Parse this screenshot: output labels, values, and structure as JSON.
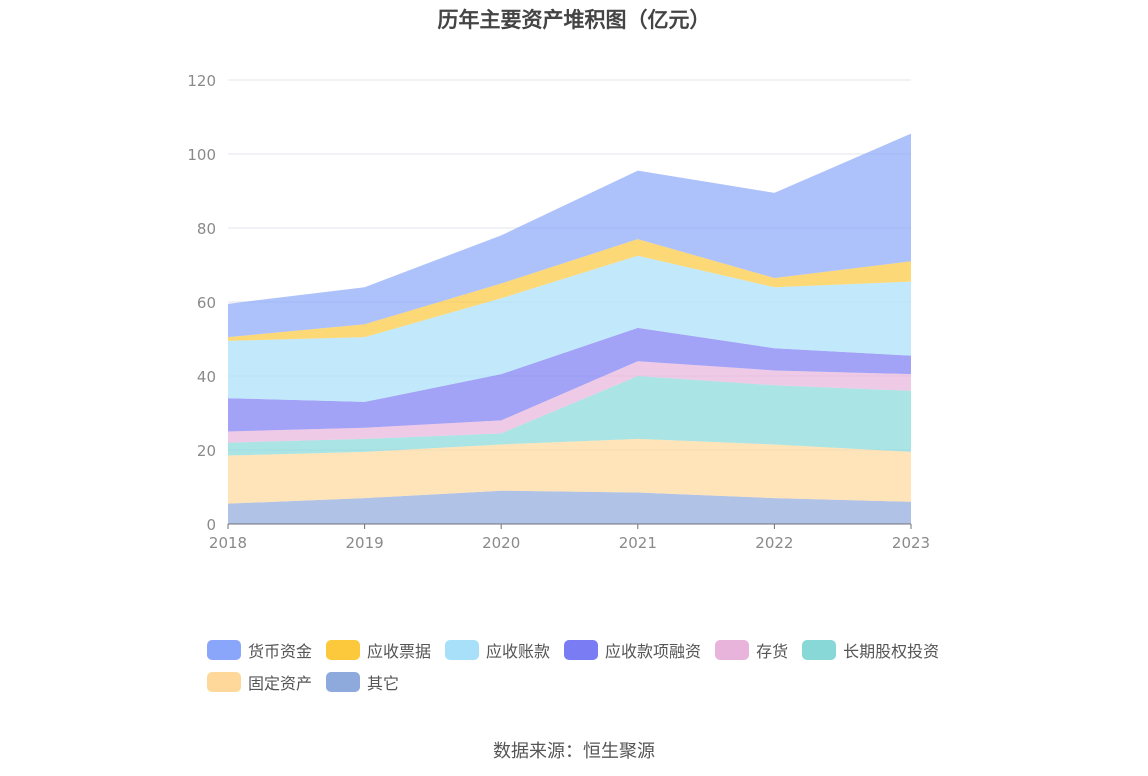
{
  "chart_data": {
    "type": "area",
    "stacked": true,
    "title": "历年主要资产堆积图（亿元）",
    "x": [
      "2018",
      "2019",
      "2020",
      "2021",
      "2022",
      "2023"
    ],
    "ylim": [
      0,
      120
    ],
    "yticks": [
      "0",
      "20",
      "40",
      "60",
      "80",
      "100",
      "120"
    ],
    "grid": true,
    "legend_position": "bottom",
    "series": [
      {
        "name": "其它",
        "color": "#8eaadc",
        "values": [
          5.5,
          7.0,
          9.0,
          8.5,
          7.0,
          6.0
        ]
      },
      {
        "name": "固定资产",
        "color": "#fdd89a",
        "values": [
          13.0,
          12.5,
          12.5,
          14.5,
          14.5,
          13.5
        ]
      },
      {
        "name": "长期股权投资",
        "color": "#88d8d8",
        "values": [
          3.5,
          3.5,
          3.0,
          17.0,
          16.0,
          16.5
        ]
      },
      {
        "name": "存货",
        "color": "#e8b4dc",
        "values": [
          3.0,
          3.0,
          3.5,
          4.0,
          4.0,
          4.5
        ]
      },
      {
        "name": "应收款项融资",
        "color": "#7a7cf4",
        "values": [
          9.0,
          7.0,
          12.5,
          9.0,
          6.0,
          5.0
        ]
      },
      {
        "name": "应收账款",
        "color": "#a8e0fa",
        "values": [
          15.5,
          17.5,
          20.5,
          19.5,
          16.5,
          20.0
        ]
      },
      {
        "name": "应收票据",
        "color": "#fcc83c",
        "values": [
          1.0,
          3.5,
          4.0,
          4.5,
          2.5,
          5.5
        ]
      },
      {
        "name": "货币资金",
        "color": "#8aa6fa",
        "values": [
          9.0,
          10.0,
          13.0,
          18.5,
          23.0,
          34.5
        ]
      }
    ]
  },
  "legend_order": [
    7,
    6,
    5,
    4,
    3,
    2,
    1,
    0
  ],
  "source": "数据来源：恒生聚源"
}
